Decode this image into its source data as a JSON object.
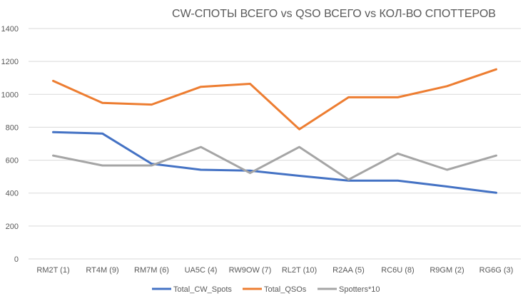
{
  "chart_data": {
    "type": "line",
    "title": "CW-СПОТЫ ВСЕГО vs QSO ВСЕГО vs КОЛ-ВО СПОТТЕРОВ",
    "categories": [
      "RM2T (1)",
      "RT4M (9)",
      "RM7M (6)",
      "UA5C (4)",
      "RW9OW (7)",
      "RL2T (10)",
      "R2AA (5)",
      "RC6U (8)",
      "R9GM (2)",
      "RG6G (3)"
    ],
    "ylim": [
      0,
      1400
    ],
    "yticks": [
      0,
      200,
      400,
      600,
      800,
      1000,
      1200,
      1400
    ],
    "grid": true,
    "legend_position": "bottom",
    "series": [
      {
        "name": "Total_CW_Spots",
        "color": "#4472c4",
        "values": [
          770,
          762,
          578,
          542,
          536,
          505,
          476,
          476,
          440,
          402
        ]
      },
      {
        "name": "Total_QSOs",
        "color": "#ed7d31",
        "values": [
          1082,
          948,
          938,
          1046,
          1064,
          788,
          982,
          982,
          1050,
          1152
        ]
      },
      {
        "name": "Spotters*10",
        "color": "#a5a5a5",
        "values": [
          628,
          568,
          568,
          680,
          522,
          680,
          482,
          640,
          542,
          628
        ]
      }
    ]
  }
}
